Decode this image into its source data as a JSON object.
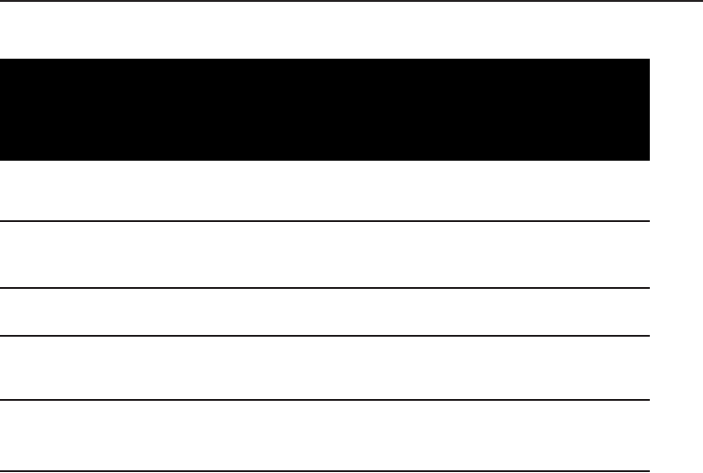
{
  "colors": {
    "header_fill": "#000000",
    "rule": "#231f20",
    "background": "#ffffff"
  },
  "table": {
    "header": "",
    "rows": [
      "",
      "",
      "",
      "",
      ""
    ]
  }
}
